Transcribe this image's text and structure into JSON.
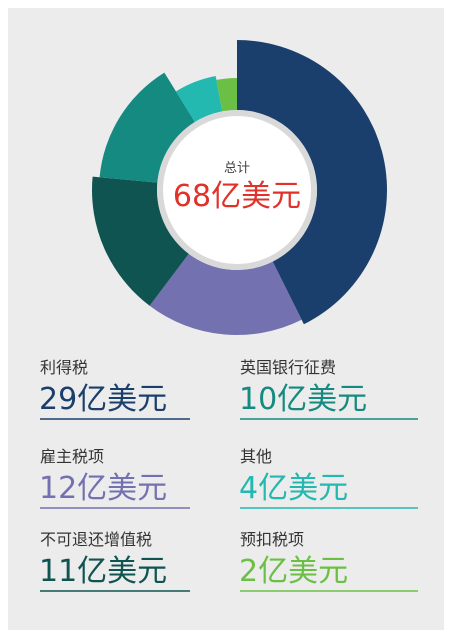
{
  "chart_data": {
    "type": "donut",
    "center_title": "总计",
    "center_total": "68亿美元",
    "categories": [
      "利得税",
      "雇主税项",
      "不可退还增值税",
      "英国银行征费",
      "其他",
      "预扣税项"
    ],
    "values": [
      29,
      12,
      11,
      10,
      4,
      2
    ],
    "value_labels": [
      "29亿美元",
      "12亿美元",
      "11亿美元",
      "10亿美元",
      "4亿美元",
      "2亿美元"
    ],
    "colors": [
      "#1b3f6c",
      "#7371b0",
      "#0f5450",
      "#148a80",
      "#23b8b0",
      "#6cbf45"
    ]
  }
}
